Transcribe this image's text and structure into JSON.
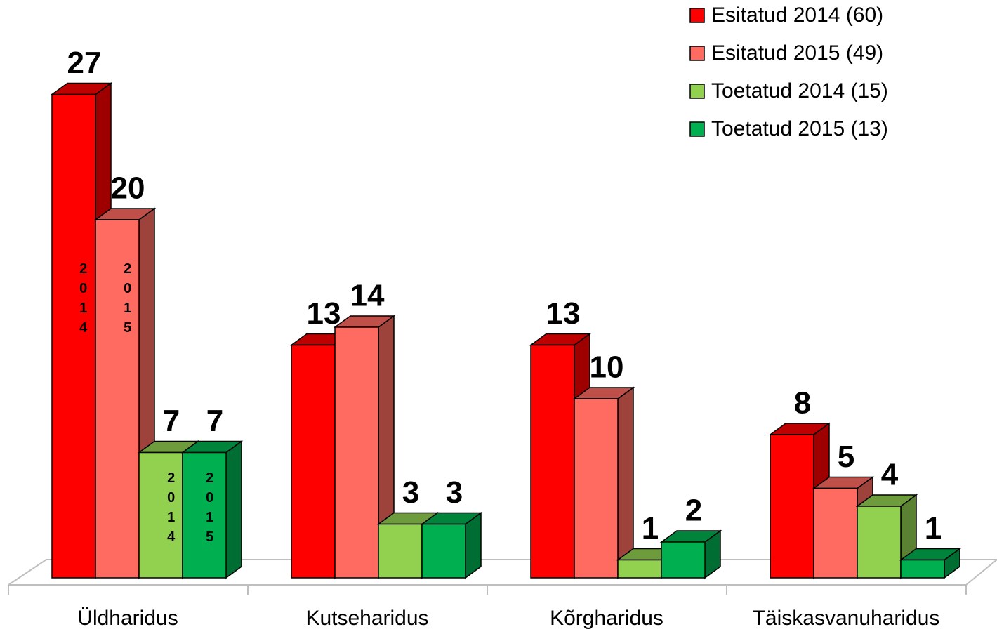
{
  "chart_data": {
    "type": "bar3d",
    "categories": [
      "Üldharidus",
      "Kutseharidus",
      "Kõrgharidus",
      "Täiskasvanuharidus"
    ],
    "series": [
      {
        "name": "Esitatud 2014 (60)",
        "color": "#ff0000",
        "values": [
          27,
          13,
          13,
          8
        ]
      },
      {
        "name": "Esitatud 2015 (49)",
        "color": "#ff6b61",
        "values": [
          20,
          14,
          10,
          5
        ]
      },
      {
        "name": "Toetatud 2014 (15)",
        "color": "#92d050",
        "values": [
          7,
          3,
          1,
          4
        ]
      },
      {
        "name": "Toetatud 2015 (13)",
        "color": "#00b050",
        "values": [
          7,
          3,
          2,
          1
        ]
      }
    ],
    "bar_annotations": [
      "2014",
      "2015",
      "2014",
      "2015"
    ],
    "ylim": [
      0,
      30
    ],
    "legend": "top-right"
  }
}
